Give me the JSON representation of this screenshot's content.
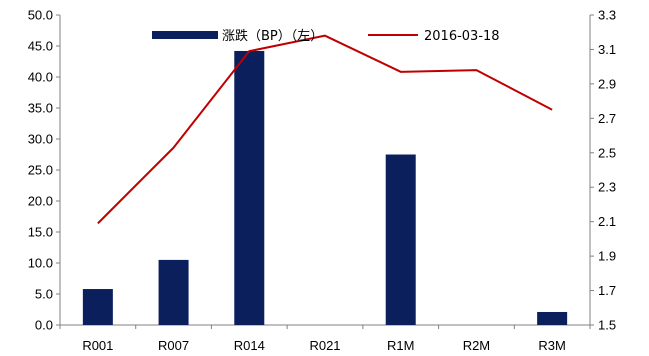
{
  "chart_data": {
    "type": "bar+line",
    "categories": [
      "R001",
      "R007",
      "R014",
      "R021",
      "R1M",
      "R2M",
      "R3M"
    ],
    "series": [
      {
        "name": "涨跌（BP）（左）",
        "type": "bar",
        "axis": "left",
        "color": "#0b1f5c",
        "values": [
          5.8,
          10.5,
          44.2,
          0,
          27.5,
          0,
          2.1
        ]
      },
      {
        "name": "2016-03-18",
        "type": "line",
        "axis": "right",
        "color": "#c00000",
        "values": [
          2.09,
          2.53,
          3.09,
          3.18,
          2.97,
          2.98,
          2.75
        ]
      }
    ],
    "y_left": {
      "min": 0,
      "max": 50,
      "ticks": [
        "0.0",
        "5.0",
        "10.0",
        "15.0",
        "20.0",
        "25.0",
        "30.0",
        "35.0",
        "40.0",
        "45.0",
        "50.0"
      ]
    },
    "y_right": {
      "min": 1.5,
      "max": 3.3,
      "ticks": [
        "1.5",
        "1.7",
        "1.9",
        "2.1",
        "2.3",
        "2.5",
        "2.7",
        "2.9",
        "3.1",
        "3.3"
      ]
    },
    "title": "",
    "xlabel": "",
    "legend_position": "top-center",
    "grid": false
  }
}
